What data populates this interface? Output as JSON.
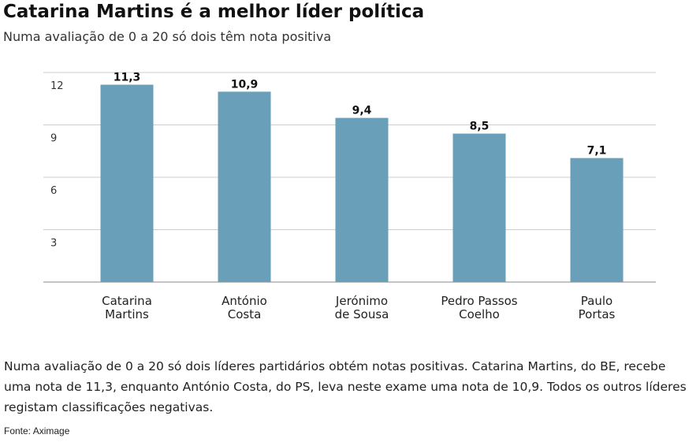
{
  "title": "Catarina Martins é a melhor líder política",
  "subtitle": "Numa avaliação de 0 a 20 só dois têm nota positiva",
  "description": "Numa avaliação de 0 a 20 só dois líderes partidários obtém notas positivas. Catarina Martins, do BE, recebe uma nota de 11,3, enquanto António Costa, do PS, leva neste exame uma nota de 10,9. Todos os outros líderes registam classificações negativas.",
  "source": "Fonte: Aximage",
  "colors": {
    "bar": "#6a9fba",
    "grid": "#cccccc",
    "axis": "#888888"
  },
  "chart_data": {
    "type": "bar",
    "categories": [
      [
        "Catarina",
        "Martins"
      ],
      [
        "António",
        "Costa"
      ],
      [
        "Jerónimo",
        "de Sousa"
      ],
      [
        "Pedro Passos",
        "Coelho"
      ],
      [
        "Paulo",
        "Portas"
      ]
    ],
    "values": [
      11.3,
      10.9,
      9.4,
      8.5,
      7.1
    ],
    "value_labels": [
      "11,3",
      "10,9",
      "9,4",
      "8,5",
      "7,1"
    ],
    "y_ticks": [
      3,
      6,
      9,
      12
    ],
    "ylim": [
      0,
      12
    ],
    "grid": true
  }
}
